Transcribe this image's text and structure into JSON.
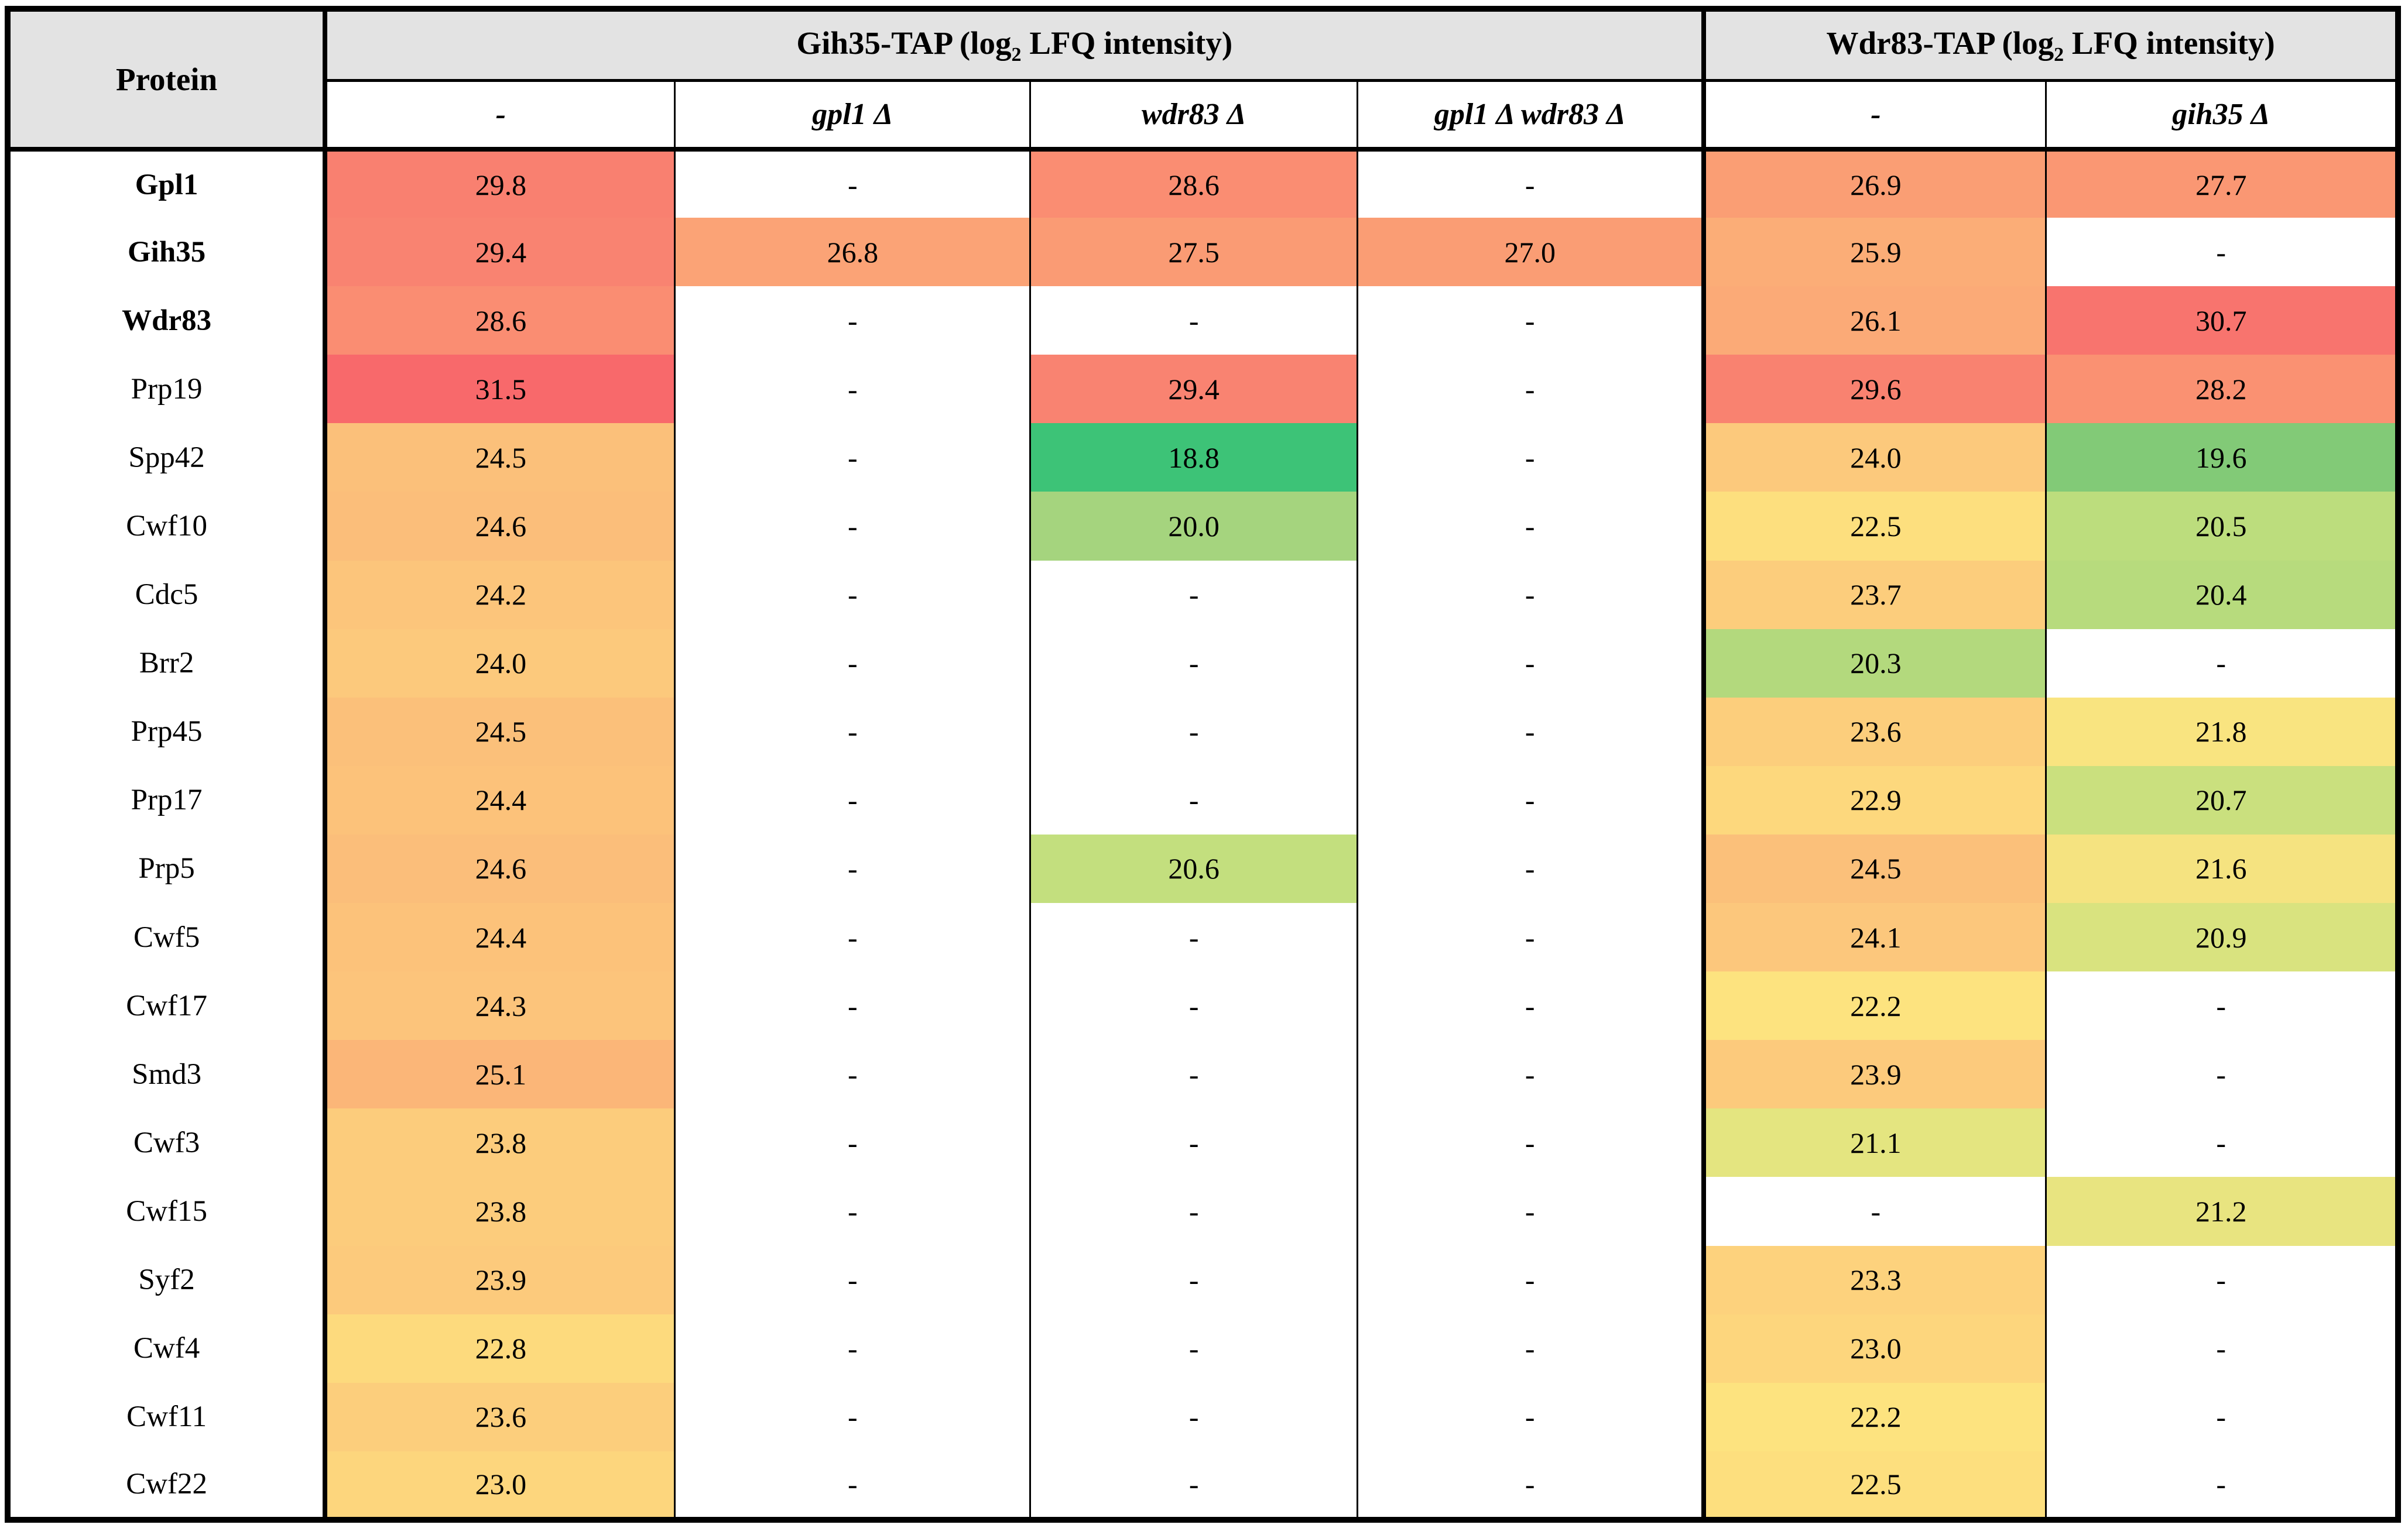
{
  "table": {
    "protein_header": "Protein",
    "groups": [
      {
        "title_pre": "Gih35-TAP (log",
        "title_sub": "2",
        "title_post": " LFQ intensity)",
        "cols": [
          "-",
          "gpl1 Δ",
          "wdr83 Δ",
          "gpl1 Δ wdr83 Δ"
        ]
      },
      {
        "title_pre": "Wdr83-TAP (log",
        "title_sub": "2",
        "title_post": " LFQ intensity)",
        "cols": [
          "-",
          "gih35 Δ"
        ]
      }
    ],
    "colors": {
      "header_bg": "#E3E3E3",
      "border": "#000000",
      "missing_bg": "#FFFFFF",
      "scale_max_red": "#F8696B",
      "scale_mid_yellow": "#FDE37F",
      "scale_min_green": "#3DC377"
    },
    "missing_marker": "-",
    "rows": [
      {
        "protein": "Gpl1",
        "bold": true,
        "cells": [
          {
            "v": "29.8",
            "bg": "#F98070"
          },
          {
            "v": "-",
            "bg": ""
          },
          {
            "v": "28.6",
            "bg": "#FA8D72"
          },
          {
            "v": "-",
            "bg": ""
          },
          {
            "v": "26.9",
            "bg": "#FA9E74"
          },
          {
            "v": "27.7",
            "bg": "#FA9773"
          }
        ]
      },
      {
        "protein": "Gih35",
        "bold": true,
        "cells": [
          {
            "v": "29.4",
            "bg": "#F98371"
          },
          {
            "v": "26.8",
            "bg": "#FBA376"
          },
          {
            "v": "27.5",
            "bg": "#FA9B74"
          },
          {
            "v": "27.0",
            "bg": "#FA9D74"
          },
          {
            "v": "25.9",
            "bg": "#FBAD77"
          },
          {
            "v": "-",
            "bg": ""
          }
        ]
      },
      {
        "protein": "Wdr83",
        "bold": true,
        "cells": [
          {
            "v": "28.6",
            "bg": "#FA8D72"
          },
          {
            "v": "-",
            "bg": ""
          },
          {
            "v": "-",
            "bg": ""
          },
          {
            "v": "-",
            "bg": ""
          },
          {
            "v": "26.1",
            "bg": "#FBAA77"
          },
          {
            "v": "30.7",
            "bg": "#F8746E"
          }
        ]
      },
      {
        "protein": "Prp19",
        "bold": false,
        "cells": [
          {
            "v": "31.5",
            "bg": "#F8696B"
          },
          {
            "v": "-",
            "bg": ""
          },
          {
            "v": "29.4",
            "bg": "#F98371"
          },
          {
            "v": "-",
            "bg": ""
          },
          {
            "v": "29.6",
            "bg": "#F98270"
          },
          {
            "v": "28.2",
            "bg": "#FA9172"
          }
        ]
      },
      {
        "protein": "Spp42",
        "bold": false,
        "cells": [
          {
            "v": "24.5",
            "bg": "#FBC07A"
          },
          {
            "v": "-",
            "bg": ""
          },
          {
            "v": "18.8",
            "bg": "#3DC377"
          },
          {
            "v": "-",
            "bg": ""
          },
          {
            "v": "24.0",
            "bg": "#FCC97C"
          },
          {
            "v": "19.6",
            "bg": "#82CA77"
          }
        ]
      },
      {
        "protein": "Cwf10",
        "bold": false,
        "cells": [
          {
            "v": "24.6",
            "bg": "#FBBE7A"
          },
          {
            "v": "-",
            "bg": ""
          },
          {
            "v": "20.0",
            "bg": "#A5D47E"
          },
          {
            "v": "-",
            "bg": ""
          },
          {
            "v": "22.5",
            "bg": "#FDDF7E"
          },
          {
            "v": "20.5",
            "bg": "#BCDD7D"
          }
        ]
      },
      {
        "protein": "Cdc5",
        "bold": false,
        "cells": [
          {
            "v": "24.2",
            "bg": "#FCC57B"
          },
          {
            "v": "-",
            "bg": ""
          },
          {
            "v": "-",
            "bg": ""
          },
          {
            "v": "-",
            "bg": ""
          },
          {
            "v": "23.7",
            "bg": "#FCCD7C"
          },
          {
            "v": "20.4",
            "bg": "#B7DB7D"
          }
        ]
      },
      {
        "protein": "Brr2",
        "bold": false,
        "cells": [
          {
            "v": "24.0",
            "bg": "#FCC97C"
          },
          {
            "v": "-",
            "bg": ""
          },
          {
            "v": "-",
            "bg": ""
          },
          {
            "v": "-",
            "bg": ""
          },
          {
            "v": "20.3",
            "bg": "#B3D97D"
          },
          {
            "v": "-",
            "bg": ""
          }
        ]
      },
      {
        "protein": "Prp45",
        "bold": false,
        "cells": [
          {
            "v": "24.5",
            "bg": "#FBC07A"
          },
          {
            "v": "-",
            "bg": ""
          },
          {
            "v": "-",
            "bg": ""
          },
          {
            "v": "-",
            "bg": ""
          },
          {
            "v": "23.6",
            "bg": "#FCCE7C"
          },
          {
            "v": "21.8",
            "bg": "#F9E480"
          }
        ]
      },
      {
        "protein": "Prp17",
        "bold": false,
        "cells": [
          {
            "v": "24.4",
            "bg": "#FCC27A"
          },
          {
            "v": "-",
            "bg": ""
          },
          {
            "v": "-",
            "bg": ""
          },
          {
            "v": "-",
            "bg": ""
          },
          {
            "v": "22.9",
            "bg": "#FDD87D"
          },
          {
            "v": "20.7",
            "bg": "#CAE07E"
          }
        ]
      },
      {
        "protein": "Prp5",
        "bold": false,
        "cells": [
          {
            "v": "24.6",
            "bg": "#FBBE7A"
          },
          {
            "v": "-",
            "bg": ""
          },
          {
            "v": "20.6",
            "bg": "#C3DF7E"
          },
          {
            "v": "-",
            "bg": ""
          },
          {
            "v": "24.5",
            "bg": "#FBC07A"
          },
          {
            "v": "21.6",
            "bg": "#F5E380"
          }
        ]
      },
      {
        "protein": "Cwf5",
        "bold": false,
        "cells": [
          {
            "v": "24.4",
            "bg": "#FCC27A"
          },
          {
            "v": "-",
            "bg": ""
          },
          {
            "v": "-",
            "bg": ""
          },
          {
            "v": "-",
            "bg": ""
          },
          {
            "v": "24.1",
            "bg": "#FCC77C"
          },
          {
            "v": "20.9",
            "bg": "#D9E37F"
          }
        ]
      },
      {
        "protein": "Cwf17",
        "bold": false,
        "cells": [
          {
            "v": "24.3",
            "bg": "#FCC47B"
          },
          {
            "v": "-",
            "bg": ""
          },
          {
            "v": "-",
            "bg": ""
          },
          {
            "v": "-",
            "bg": ""
          },
          {
            "v": "22.2",
            "bg": "#FDE37F"
          },
          {
            "v": "-",
            "bg": ""
          }
        ]
      },
      {
        "protein": "Smd3",
        "bold": false,
        "cells": [
          {
            "v": "25.1",
            "bg": "#FBB678"
          },
          {
            "v": "-",
            "bg": ""
          },
          {
            "v": "-",
            "bg": ""
          },
          {
            "v": "-",
            "bg": ""
          },
          {
            "v": "23.9",
            "bg": "#FCCA7C"
          },
          {
            "v": "-",
            "bg": ""
          }
        ]
      },
      {
        "protein": "Cwf3",
        "bold": false,
        "cells": [
          {
            "v": "23.8",
            "bg": "#FCCC7C"
          },
          {
            "v": "-",
            "bg": ""
          },
          {
            "v": "-",
            "bg": ""
          },
          {
            "v": "-",
            "bg": ""
          },
          {
            "v": "21.1",
            "bg": "#E4E580"
          },
          {
            "v": "-",
            "bg": ""
          }
        ]
      },
      {
        "protein": "Cwf15",
        "bold": false,
        "cells": [
          {
            "v": "23.8",
            "bg": "#FCCC7C"
          },
          {
            "v": "-",
            "bg": ""
          },
          {
            "v": "-",
            "bg": ""
          },
          {
            "v": "-",
            "bg": ""
          },
          {
            "v": "-",
            "bg": ""
          },
          {
            "v": "21.2",
            "bg": "#E8E480"
          }
        ]
      },
      {
        "protein": "Syf2",
        "bold": false,
        "cells": [
          {
            "v": "23.9",
            "bg": "#FCCA7C"
          },
          {
            "v": "-",
            "bg": ""
          },
          {
            "v": "-",
            "bg": ""
          },
          {
            "v": "-",
            "bg": ""
          },
          {
            "v": "23.3",
            "bg": "#FDD27D"
          },
          {
            "v": "-",
            "bg": ""
          }
        ]
      },
      {
        "protein": "Cwf4",
        "bold": false,
        "cells": [
          {
            "v": "22.8",
            "bg": "#FDDA7D"
          },
          {
            "v": "-",
            "bg": ""
          },
          {
            "v": "-",
            "bg": ""
          },
          {
            "v": "-",
            "bg": ""
          },
          {
            "v": "23.0",
            "bg": "#FDD67D"
          },
          {
            "v": "-",
            "bg": ""
          }
        ]
      },
      {
        "protein": "Cwf11",
        "bold": false,
        "cells": [
          {
            "v": "23.6",
            "bg": "#FCCE7C"
          },
          {
            "v": "-",
            "bg": ""
          },
          {
            "v": "-",
            "bg": ""
          },
          {
            "v": "-",
            "bg": ""
          },
          {
            "v": "22.2",
            "bg": "#FDE37F"
          },
          {
            "v": "-",
            "bg": ""
          }
        ]
      },
      {
        "protein": "Cwf22",
        "bold": false,
        "cells": [
          {
            "v": "23.0",
            "bg": "#FDD67D"
          },
          {
            "v": "-",
            "bg": ""
          },
          {
            "v": "-",
            "bg": ""
          },
          {
            "v": "-",
            "bg": ""
          },
          {
            "v": "22.5",
            "bg": "#FDDF7E"
          },
          {
            "v": "-",
            "bg": ""
          }
        ]
      }
    ]
  }
}
